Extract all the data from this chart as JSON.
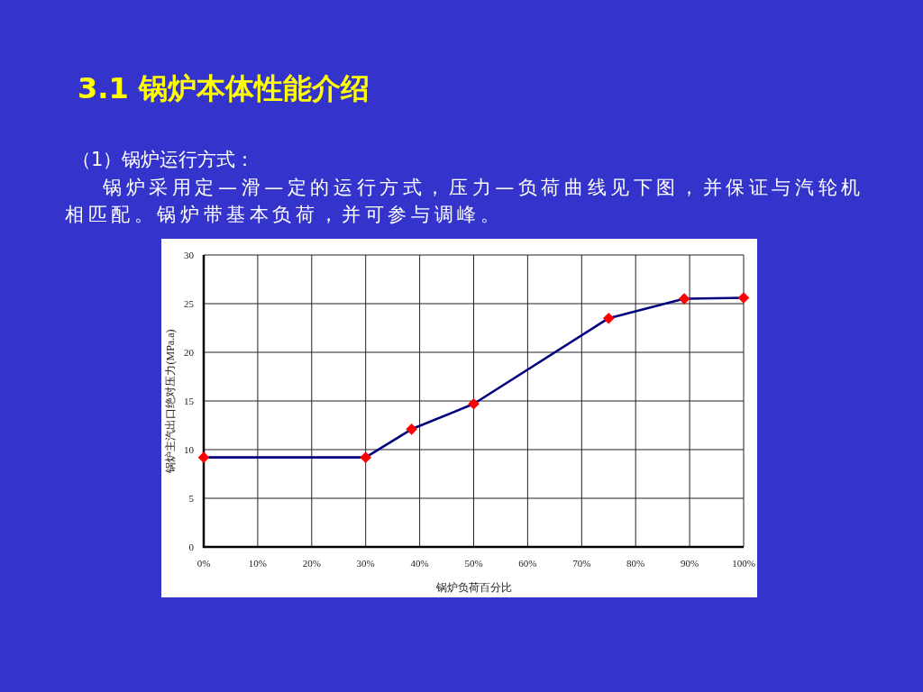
{
  "chart_data": {
    "type": "line",
    "title": "3.1 锅炉本体性能介绍",
    "subtitle": "（1）锅炉运行方式：",
    "annotations": [
      "锅炉采用定—滑—定的运行方式，压力—负荷曲线见下图，并保证与汽轮机相匹配。锅炉带基本负荷，并可参与调峰。"
    ],
    "xlabel": "锅炉负荷百分比",
    "ylabel": "锅炉主汽出口绝对压力(MPa.a)",
    "x": [
      0,
      30,
      38.5,
      50,
      75,
      89,
      100
    ],
    "values": [
      9.2,
      9.2,
      12.1,
      14.7,
      23.5,
      25.5,
      25.6
    ],
    "color": "#000080",
    "colors": [
      "#ff0000",
      "#ff0000",
      "#ff0000",
      "#ff0000",
      "#ff0000",
      "#ff0000",
      "#ff0000"
    ],
    "marker": "diamond",
    "xlim": [
      0,
      100
    ],
    "xticks": [
      {
        "value": 0,
        "label": "0%"
      },
      {
        "value": 10,
        "label": "10%"
      },
      {
        "value": 20,
        "label": "20%"
      },
      {
        "value": 30,
        "label": "30%"
      },
      {
        "value": 40,
        "label": "40%"
      },
      {
        "value": 50,
        "label": "50%"
      },
      {
        "value": 60,
        "label": "60%"
      },
      {
        "value": 70,
        "label": "70%"
      },
      {
        "value": 80,
        "label": "80%"
      },
      {
        "value": 90,
        "label": "90%"
      },
      {
        "value": 100,
        "label": "100%"
      }
    ],
    "ylim": [
      0,
      30
    ],
    "yticks": [
      0,
      5,
      10,
      15,
      20,
      25,
      30
    ],
    "grid": true
  }
}
